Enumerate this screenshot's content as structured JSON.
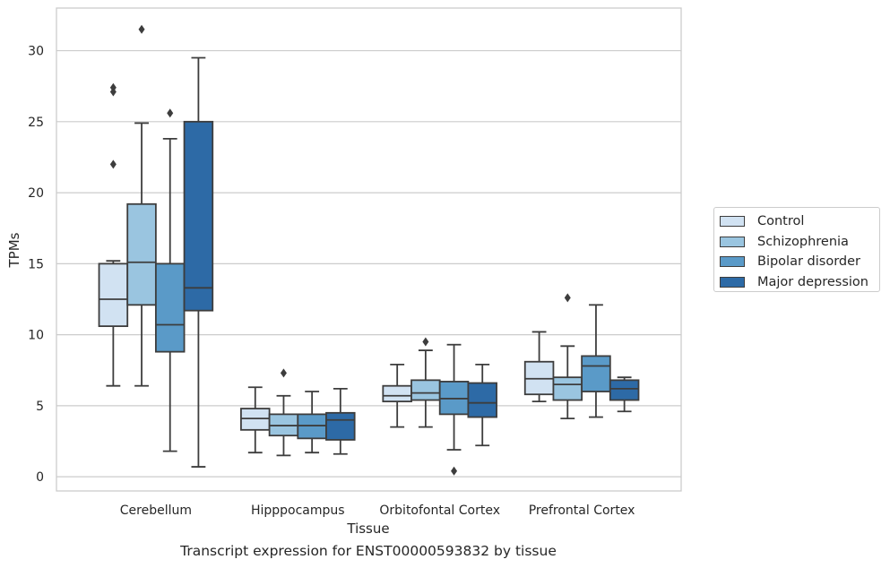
{
  "chart_data": {
    "type": "box",
    "caption": "Transcript expression for ENST00000593832 by tissue",
    "xlabel": "Tissue",
    "ylabel": "TPMs",
    "ylim": [
      -1,
      33
    ],
    "yticks": [
      0,
      5,
      10,
      15,
      20,
      25,
      30
    ],
    "grid": true,
    "legend_position": "right",
    "categories": [
      "Cerebellum",
      "Hipppocampus",
      "Orbitofontal Cortex",
      "Prefrontal Cortex"
    ],
    "series": [
      {
        "name": "Control",
        "color": "#d1e2f2",
        "boxes": [
          {
            "whisker_low": 6.4,
            "q1": 10.6,
            "median": 12.5,
            "q3": 15.0,
            "whisker_high": 15.2,
            "outliers": [
              22.0,
              27.1,
              27.4
            ]
          },
          {
            "whisker_low": 1.7,
            "q1": 3.3,
            "median": 4.1,
            "q3": 4.8,
            "whisker_high": 6.3,
            "outliers": []
          },
          {
            "whisker_low": 3.5,
            "q1": 5.3,
            "median": 5.7,
            "q3": 6.4,
            "whisker_high": 7.9,
            "outliers": []
          },
          {
            "whisker_low": 5.3,
            "q1": 5.8,
            "median": 6.9,
            "q3": 8.1,
            "whisker_high": 10.2,
            "outliers": []
          }
        ]
      },
      {
        "name": "Schizophrenia",
        "color": "#9ac5e0",
        "boxes": [
          {
            "whisker_low": 6.4,
            "q1": 12.1,
            "median": 15.1,
            "q3": 19.2,
            "whisker_high": 24.9,
            "outliers": [
              31.5
            ]
          },
          {
            "whisker_low": 1.5,
            "q1": 2.9,
            "median": 3.6,
            "q3": 4.4,
            "whisker_high": 5.7,
            "outliers": [
              7.3
            ]
          },
          {
            "whisker_low": 3.5,
            "q1": 5.4,
            "median": 5.9,
            "q3": 6.8,
            "whisker_high": 8.9,
            "outliers": [
              9.5
            ]
          },
          {
            "whisker_low": 4.1,
            "q1": 5.4,
            "median": 6.5,
            "q3": 7.0,
            "whisker_high": 9.2,
            "outliers": [
              12.6
            ]
          }
        ]
      },
      {
        "name": "Bipolar disorder",
        "color": "#5a9ac8",
        "boxes": [
          {
            "whisker_low": 1.8,
            "q1": 8.8,
            "median": 10.7,
            "q3": 15.0,
            "whisker_high": 23.8,
            "outliers": [
              25.6
            ]
          },
          {
            "whisker_low": 1.7,
            "q1": 2.7,
            "median": 3.6,
            "q3": 4.4,
            "whisker_high": 6.0,
            "outliers": []
          },
          {
            "whisker_low": 1.9,
            "q1": 4.4,
            "median": 5.5,
            "q3": 6.7,
            "whisker_high": 9.3,
            "outliers": [
              0.4
            ]
          },
          {
            "whisker_low": 4.2,
            "q1": 6.0,
            "median": 7.8,
            "q3": 8.5,
            "whisker_high": 12.1,
            "outliers": []
          }
        ]
      },
      {
        "name": "Major depression",
        "color": "#2d6aa6",
        "boxes": [
          {
            "whisker_low": 0.7,
            "q1": 11.7,
            "median": 13.3,
            "q3": 25.0,
            "whisker_high": 29.5,
            "outliers": []
          },
          {
            "whisker_low": 1.6,
            "q1": 2.6,
            "median": 4.0,
            "q3": 4.5,
            "whisker_high": 6.2,
            "outliers": []
          },
          {
            "whisker_low": 2.2,
            "q1": 4.2,
            "median": 5.2,
            "q3": 6.6,
            "whisker_high": 7.9,
            "outliers": []
          },
          {
            "whisker_low": 4.6,
            "q1": 5.4,
            "median": 6.2,
            "q3": 6.8,
            "whisker_high": 7.0,
            "outliers": []
          }
        ]
      }
    ]
  }
}
